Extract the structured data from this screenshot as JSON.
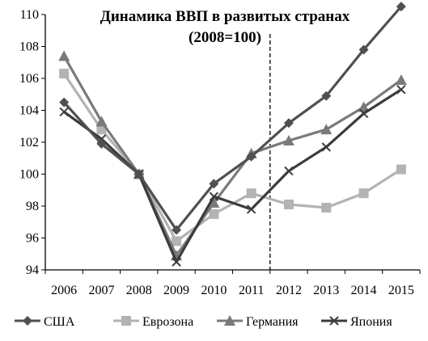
{
  "chart_data": {
    "type": "line",
    "title": "Динамика ВВП в развитых странах",
    "subtitle": "(2008=100)",
    "x": [
      "2006",
      "2007",
      "2008",
      "2009",
      "2010",
      "2011",
      "2012",
      "2013",
      "2014",
      "2015"
    ],
    "ylim": [
      94,
      110
    ],
    "yticks": [
      94,
      96,
      98,
      100,
      102,
      104,
      106,
      108,
      110
    ],
    "grid": false,
    "legend_position": "bottom",
    "forecast_divider_after": "2011",
    "series": [
      {
        "name": "США",
        "color": "#505050",
        "marker": "diamond",
        "values": [
          104.5,
          101.9,
          100.0,
          96.5,
          99.4,
          101.1,
          103.2,
          104.9,
          107.8,
          110.5
        ]
      },
      {
        "name": "Еврозона",
        "color": "#b3b3b3",
        "marker": "square",
        "values": [
          106.3,
          102.8,
          100.0,
          95.8,
          97.5,
          98.8,
          98.1,
          97.9,
          98.8,
          100.3
        ]
      },
      {
        "name": "Германия",
        "color": "#7a7a7a",
        "marker": "triangle",
        "values": [
          107.4,
          103.3,
          100.0,
          94.9,
          98.2,
          101.3,
          102.1,
          102.8,
          104.2,
          105.9
        ]
      },
      {
        "name": "Япония",
        "color": "#3c3c3c",
        "marker": "cross",
        "values": [
          103.9,
          102.2,
          100.0,
          94.5,
          98.6,
          97.8,
          100.2,
          101.7,
          103.8,
          105.3
        ]
      }
    ]
  }
}
